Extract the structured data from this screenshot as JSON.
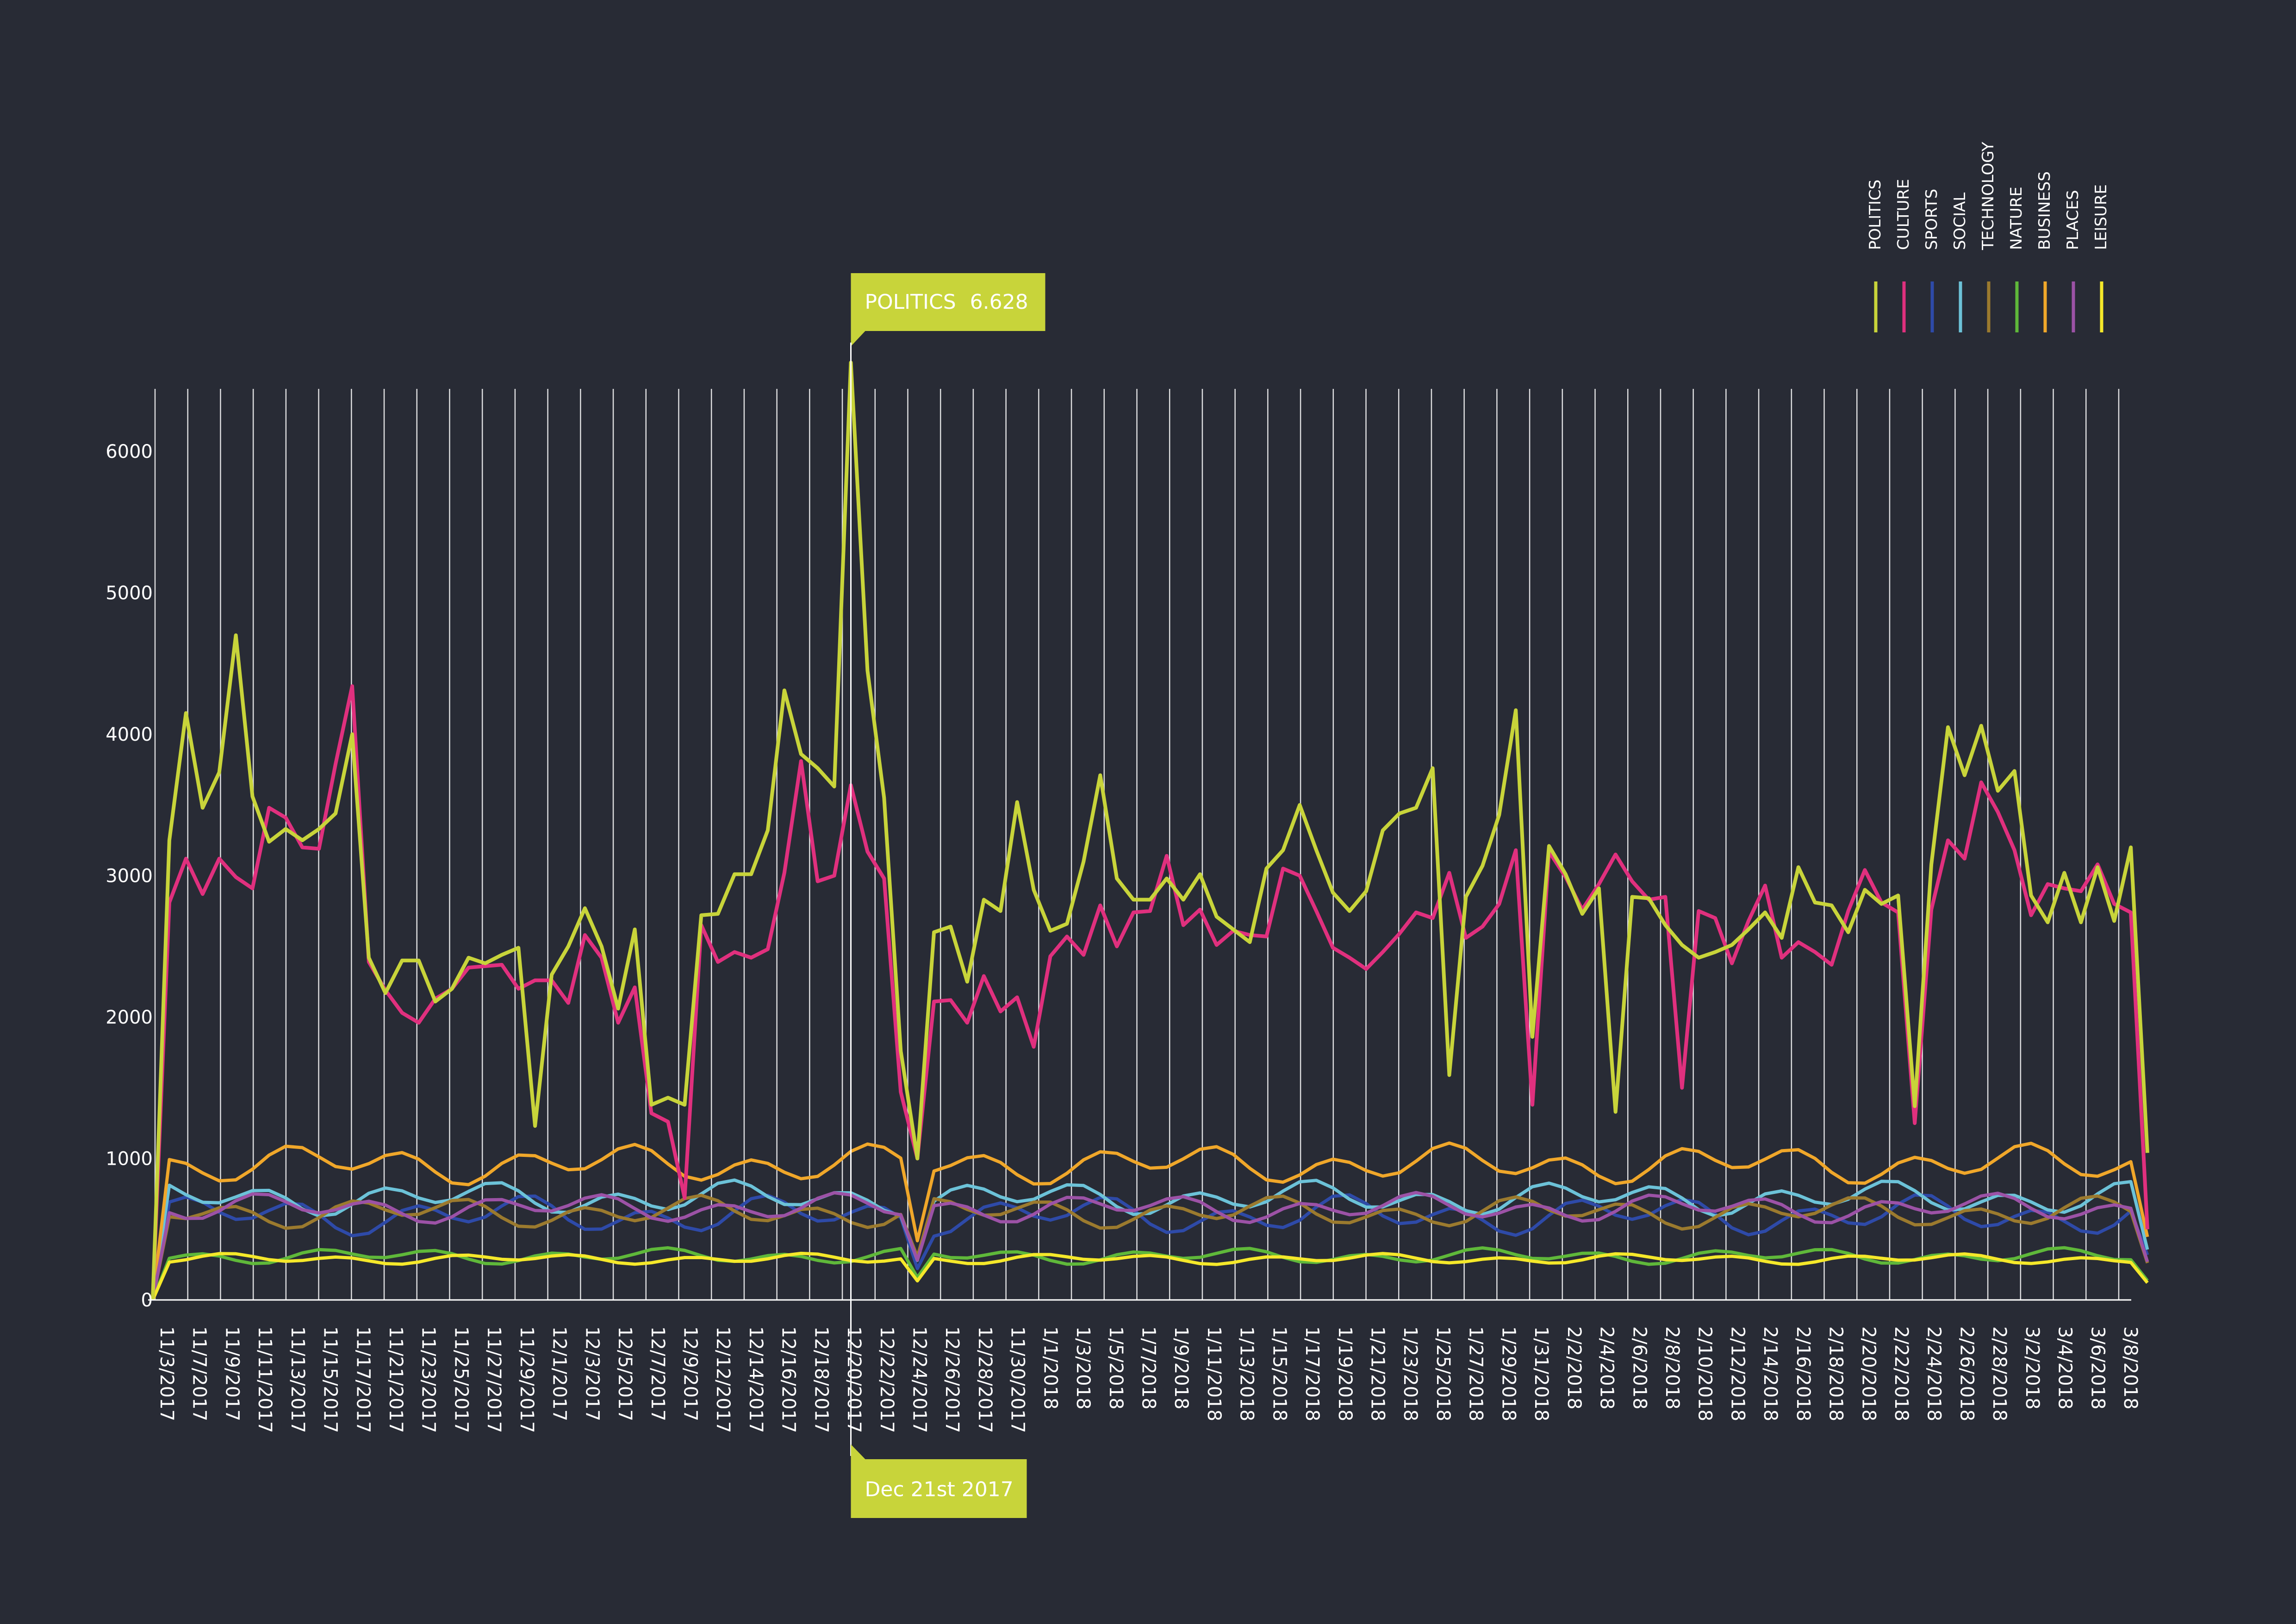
{
  "chart_data": {
    "type": "line",
    "x_labels": [
      "11/3/2017",
      "11/7/2017",
      "11/9/2017",
      "11/11/2017",
      "11/13/2017",
      "11/15/2017",
      "11/17/2017",
      "11/21/2017",
      "11/23/2017",
      "11/25/2017",
      "11/27/2017",
      "11/29/2017",
      "12/1/2017",
      "12/3/2017",
      "12/5/2017",
      "12/7/2017",
      "12/9/2017",
      "12/12/2017",
      "12/14/2017",
      "12/16/2017",
      "12/18/2017",
      "12/20/2017",
      "12/22/2017",
      "12/24/2017",
      "12/26/2017",
      "12/28/2017",
      "11/30/2017",
      "1/1/2018",
      "1/3/2018",
      "1/5/2018",
      "1/7/2018",
      "1/9/2018",
      "1/11/2018",
      "1/13/2018",
      "1/15/2018",
      "1/17/2018",
      "1/19/2018",
      "1/21/2018",
      "1/23/2018",
      "1/25/2018",
      "1/27/2018",
      "1/29/2018",
      "1/31/2018",
      "2/2/2018",
      "2/4/2018",
      "2/6/2018",
      "2/8/2018",
      "2/10/2018",
      "2/12/2018",
      "2/14/2018",
      "2/16/2018",
      "2/18/2018",
      "2/20/2018",
      "2/22/2018",
      "2/24/2018",
      "2/26/2018",
      "2/28/2018",
      "3/2/2018",
      "3/4/2018",
      "3/6/2018",
      "3/8/2018"
    ],
    "y_ticks": [
      "0",
      "1000",
      "2000",
      "3000",
      "4000",
      "5000",
      "6000"
    ],
    "ylim": [
      0,
      6700
    ],
    "grid": "vertical",
    "legend_position": "top-right",
    "legend_orientation": "vertical-rotated",
    "series": [
      {
        "name": "POLITICS",
        "color": "#c8d43a",
        "values": [
          0,
          3250,
          4150,
          3480,
          3730,
          4700,
          3560,
          3240,
          3330,
          3250,
          3330,
          3440,
          4000,
          2420,
          2170,
          2400,
          2400,
          2110,
          2200,
          2420,
          2380,
          2440,
          2490,
          1230,
          2300,
          2500,
          2770,
          2500,
          2060,
          2620,
          1380,
          1430,
          1380,
          2720,
          2730,
          3010,
          3010,
          3320,
          4310,
          3860,
          3760,
          3630,
          6628,
          4450,
          3550,
          1760,
          1000,
          2600,
          2640,
          2250,
          2830,
          2750,
          3520,
          2900,
          2610,
          2660,
          3100,
          3710,
          2980,
          2830,
          2830,
          2980,
          2830,
          3010,
          2710,
          2620,
          2530,
          3050,
          3180,
          3500,
          3180,
          2880,
          2750,
          2890,
          3320,
          3440,
          3480,
          3760,
          1590,
          2850,
          3070,
          3430,
          4170,
          1860,
          3210,
          3010,
          2730,
          2910,
          1330,
          2850,
          2840,
          2650,
          2510,
          2420,
          2460,
          2510,
          2620,
          2740,
          2560,
          3060,
          2810,
          2790,
          2600,
          2900,
          2800,
          2860,
          1370,
          3080,
          4050,
          3710,
          4060,
          3600,
          3740,
          2860,
          2670,
          3020,
          2670,
          3060,
          2680,
          3200,
          1040
        ]
      },
      {
        "name": "CULTURE",
        "color": "#e0307e",
        "values": [
          0,
          2810,
          3120,
          2870,
          3120,
          2990,
          2910,
          3480,
          3410,
          3200,
          3190,
          3790,
          4340,
          2390,
          2190,
          2030,
          1960,
          2130,
          2200,
          2350,
          2360,
          2370,
          2200,
          2260,
          2260,
          2100,
          2580,
          2420,
          1960,
          2210,
          1320,
          1260,
          720,
          2650,
          2390,
          2460,
          2420,
          2480,
          3020,
          3810,
          2960,
          3000,
          3640,
          3170,
          2980,
          1470,
          1000,
          2110,
          2120,
          1960,
          2290,
          2040,
          2140,
          1790,
          2430,
          2570,
          2440,
          2790,
          2500,
          2740,
          2750,
          3140,
          2650,
          2760,
          2510,
          2610,
          2580,
          2570,
          3050,
          3000,
          2750,
          2490,
          2420,
          2340,
          2460,
          2590,
          2740,
          2700,
          3020,
          2560,
          2640,
          2800,
          3180,
          1380,
          3170,
          2990,
          2760,
          2940,
          3150,
          2960,
          2830,
          2850,
          1500,
          2750,
          2700,
          2380,
          2680,
          2930,
          2420,
          2530,
          2460,
          2370,
          2750,
          3040,
          2810,
          2740,
          1250,
          2760,
          3250,
          3120,
          3660,
          3450,
          3180,
          2720,
          2940,
          2910,
          2890,
          3080,
          2800,
          2740,
          500
        ]
      }
    ],
    "band_series": [
      {
        "name": "SPORTS",
        "color": "#2e4aa8",
        "base": 600,
        "amp": 150
      },
      {
        "name": "SOCIAL",
        "color": "#6cc2d8",
        "base": 720,
        "amp": 130
      },
      {
        "name": "TECHNOLOGY",
        "color": "#9b7a2e",
        "base": 620,
        "amp": 120
      },
      {
        "name": "NATURE",
        "color": "#5fb83a",
        "base": 310,
        "amp": 60
      },
      {
        "name": "BUSINESS",
        "color": "#f0a72a",
        "base": 960,
        "amp": 150
      },
      {
        "name": "PLACES",
        "color": "#9c52a6",
        "base": 650,
        "amp": 110
      },
      {
        "name": "LEISURE",
        "color": "#f5e82a",
        "base": 290,
        "amp": 40
      }
    ],
    "callout_top": {
      "series": "POLITICS",
      "value": "6.628"
    },
    "callout_bottom": {
      "label": "Dec 21st 2017"
    }
  },
  "legend": {
    "items": [
      {
        "label": "POLITICS",
        "color": "#c8d43a"
      },
      {
        "label": "CULTURE",
        "color": "#e0307e"
      },
      {
        "label": "SPORTS",
        "color": "#2e4aa8"
      },
      {
        "label": "SOCIAL",
        "color": "#6cc2d8"
      },
      {
        "label": "TECHNOLOGY",
        "color": "#9b7a2e"
      },
      {
        "label": "NATURE",
        "color": "#5fb83a"
      },
      {
        "label": "BUSINESS",
        "color": "#f0a72a"
      },
      {
        "label": "PLACES",
        "color": "#9c52a6"
      },
      {
        "label": "LEISURE",
        "color": "#f5e82a"
      }
    ]
  },
  "colors": {
    "background": "#282b35",
    "grid": "#ffffff",
    "callout": "#c8d43a"
  }
}
